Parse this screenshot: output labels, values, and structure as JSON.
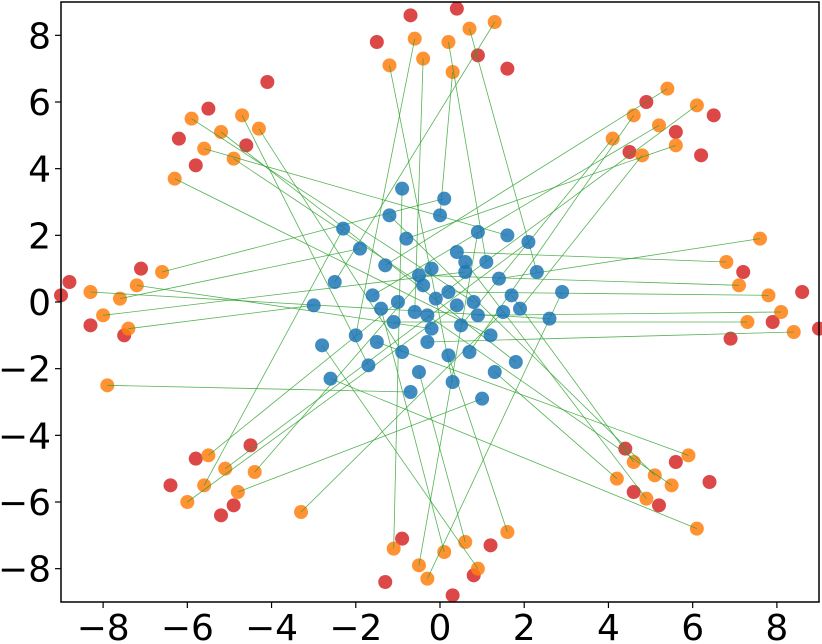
{
  "chart_data": {
    "type": "scatter",
    "xlim": [
      -9,
      9
    ],
    "ylim": [
      -9,
      9
    ],
    "xticks": [
      {
        "value": -8,
        "label": "−8"
      },
      {
        "value": -6,
        "label": "−6"
      },
      {
        "value": -4,
        "label": "−4"
      },
      {
        "value": -2,
        "label": "−2"
      },
      0,
      2,
      4,
      6,
      8
    ],
    "yticks": [
      {
        "value": -8,
        "label": "−8"
      },
      {
        "value": -6,
        "label": "−6"
      },
      {
        "value": -4,
        "label": "−4"
      },
      {
        "value": -2,
        "label": "−2"
      },
      0,
      2,
      4,
      6,
      8
    ],
    "link_color": "#2ca02c",
    "series": [
      {
        "color": "#d62728",
        "x": [
          7.9,
          7.2,
          8.6,
          6.9,
          9.0,
          5.6,
          4.9,
          6.2,
          4.5,
          6.5,
          0.9,
          -0.7,
          0.4,
          -1.5,
          1.6,
          -5.5,
          -4.6,
          -6.2,
          -4.1,
          -5.8,
          -8.3,
          -7.1,
          -8.8,
          -7.5,
          -9.0,
          -5.8,
          -4.9,
          -6.4,
          -4.5,
          -5.2,
          0.8,
          -0.9,
          0.3,
          -1.3,
          1.2,
          5.6,
          4.6,
          6.4,
          4.4,
          5.2
        ],
        "values": [
          -0.6,
          0.9,
          0.3,
          -1.1,
          -0.8,
          5.1,
          6.0,
          4.4,
          4.5,
          5.6,
          7.4,
          8.6,
          8.8,
          7.8,
          7.0,
          5.8,
          4.7,
          4.9,
          6.6,
          4.1,
          -0.7,
          1.0,
          0.6,
          -1.0,
          0.2,
          -4.7,
          -6.1,
          -5.5,
          -4.3,
          -6.4,
          -8.2,
          -7.1,
          -8.8,
          -8.4,
          -7.3,
          -4.8,
          -5.7,
          -5.4,
          -4.4,
          -6.1
        ]
      },
      {
        "color": "#ff7f0e",
        "x": [
          7.8,
          7.1,
          8.1,
          7.3,
          6.8,
          8.4,
          7.6,
          5.2,
          4.6,
          5.6,
          4.8,
          6.1,
          4.1,
          5.4,
          0.2,
          -0.4,
          0.7,
          -0.6,
          0.3,
          -1.2,
          1.3,
          -5.2,
          -4.7,
          -5.6,
          -4.9,
          -5.9,
          -4.3,
          -6.3,
          -7.6,
          -8.0,
          -7.2,
          -8.3,
          -7.4,
          -6.6,
          -7.9,
          -5.1,
          -5.6,
          -4.8,
          -5.5,
          -6.0,
          -4.4,
          -3.3,
          0.1,
          -0.5,
          0.6,
          -0.3,
          0.9,
          -1.1,
          1.6,
          5.1,
          4.6,
          5.5,
          4.9,
          5.9,
          4.2,
          6.1
        ],
        "values": [
          0.2,
          0.5,
          -0.3,
          -0.6,
          1.2,
          -0.9,
          1.9,
          5.3,
          5.6,
          4.7,
          4.4,
          5.9,
          4.9,
          6.4,
          7.8,
          7.3,
          8.2,
          7.9,
          6.9,
          7.1,
          8.4,
          5.1,
          5.6,
          4.6,
          4.3,
          5.5,
          5.2,
          3.7,
          0.1,
          -0.4,
          0.5,
          0.3,
          -0.8,
          0.9,
          -2.5,
          -5.0,
          -5.5,
          -5.7,
          -4.6,
          -6.0,
          -5.1,
          -6.3,
          -7.5,
          -7.9,
          -7.2,
          -8.3,
          -8.0,
          -7.4,
          -6.9,
          -5.2,
          -4.8,
          -5.5,
          -5.9,
          -4.6,
          -5.3,
          -6.8
        ]
      },
      {
        "color": "#1f77b4",
        "x": [
          0.2,
          -0.5,
          0.9,
          -1.1,
          0.4,
          -0.3,
          1.4,
          -1.6,
          0.7,
          -0.8,
          1.9,
          -0.1,
          0.5,
          -1.3,
          1.1,
          -0.6,
          2.3,
          -2.0,
          0.0,
          0.3,
          -2.5,
          1.8,
          -1.7,
          1.6,
          -0.4,
          0.8,
          -0.9,
          1.2,
          -1.9,
          0.6,
          -0.2,
          2.6,
          -3.0,
          0.1,
          -0.7,
          2.1,
          -2.3,
          1.0,
          -1.0,
          0.4,
          -0.2,
          1.5,
          -1.4,
          0.9,
          -0.5,
          2.9,
          -2.8,
          -0.9,
          0.2,
          -1.2,
          1.7,
          -0.3,
          0.6,
          -1.5,
          1.3,
          -2.6
        ],
        "values": [
          0.3,
          0.8,
          -0.4,
          -0.6,
          1.5,
          -1.2,
          0.7,
          0.2,
          -1.5,
          1.9,
          -0.2,
          0.1,
          -0.7,
          1.1,
          1.2,
          -0.3,
          0.9,
          -1.0,
          2.6,
          -2.4,
          0.6,
          -1.8,
          -1.9,
          2.0,
          0.5,
          0.0,
          -1.5,
          -1.0,
          1.6,
          0.9,
          -0.8,
          -0.5,
          -0.1,
          3.1,
          -2.7,
          1.8,
          2.2,
          -2.9,
          0.0,
          -0.1,
          1.0,
          -0.3,
          -0.2,
          2.1,
          -2.1,
          0.3,
          -1.3,
          3.4,
          -1.6,
          2.6,
          0.2,
          -0.4,
          1.2,
          -1.2,
          -2.1,
          -2.3
        ]
      }
    ]
  }
}
